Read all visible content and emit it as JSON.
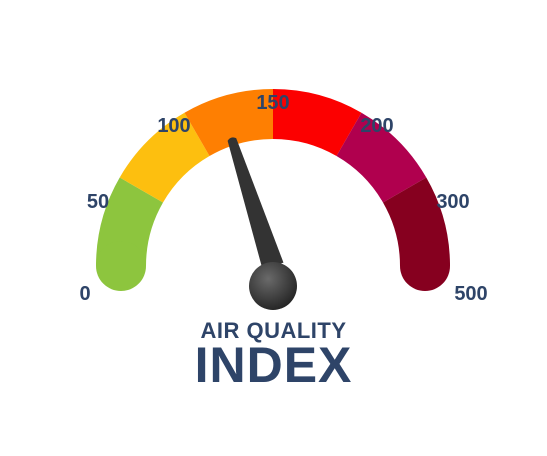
{
  "gauge": {
    "scale_labels": [
      "0",
      "50",
      "100",
      "150",
      "200",
      "300",
      "500"
    ],
    "segment_colors": [
      "#8dc53e",
      "#fdbf0f",
      "#fe7f02",
      "#fc0000",
      "#b0004e",
      "#86001f"
    ],
    "needle_value": 120,
    "needle_color": "#333333",
    "hub_color": "#3a3a3a"
  },
  "title": {
    "line1": "AIR QUALITY",
    "line2": "INDEX",
    "color": "#2e4468"
  }
}
